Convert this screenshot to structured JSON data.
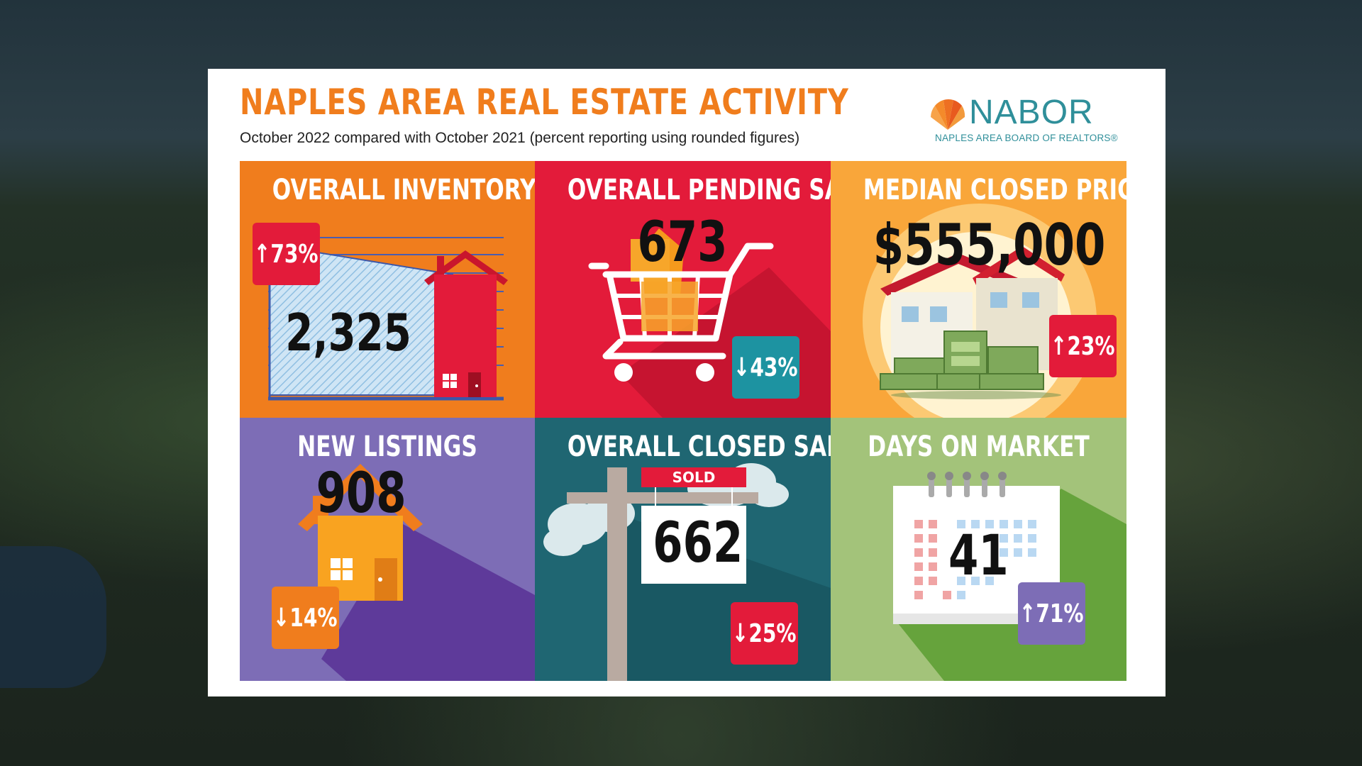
{
  "header": {
    "title": "NAPLES AREA REAL ESTATE ACTIVITY",
    "subtitle": "October 2022 compared with October 2021 (percent reporting using rounded figures)"
  },
  "logo": {
    "name": "NABOR",
    "tagline": "NAPLES AREA BOARD OF REALTORS®"
  },
  "tiles": [
    {
      "title": "OVERALL INVENTORY",
      "value": "2,325",
      "change": "73%",
      "direction": "up",
      "icon": "house-chart-icon",
      "bg": "#f07d1d",
      "badge_color": "#e31b3a"
    },
    {
      "title": "OVERALL PENDING SALES",
      "value": "673",
      "change": "43%",
      "direction": "down",
      "icon": "shopping-cart-icon",
      "bg": "#e31b3a",
      "badge_color": "#1d93a1"
    },
    {
      "title": "MEDIAN CLOSED PRICE",
      "value": "$555,000",
      "change": "23%",
      "direction": "up",
      "icon": "house-money-icon",
      "bg": "#f9a63a",
      "badge_color": "#e31b3a"
    },
    {
      "title": "NEW LISTINGS",
      "value": "908",
      "change": "14%",
      "direction": "down",
      "icon": "house-icon",
      "bg": "#7d6db6",
      "badge_color": "#f07d1d"
    },
    {
      "title": "OVERALL CLOSED SALES",
      "value": "662",
      "change": "25%",
      "direction": "down",
      "icon": "sold-sign-icon",
      "bg": "#1f6672",
      "badge_color": "#e31b3a",
      "sign_label": "SOLD"
    },
    {
      "title": "DAYS ON MARKET",
      "value": "41",
      "change": "71%",
      "direction": "up",
      "icon": "calendar-icon",
      "bg": "#a3c37a",
      "badge_color": "#7d6db6"
    }
  ],
  "arrows": {
    "up": "↑",
    "down": "↓"
  }
}
